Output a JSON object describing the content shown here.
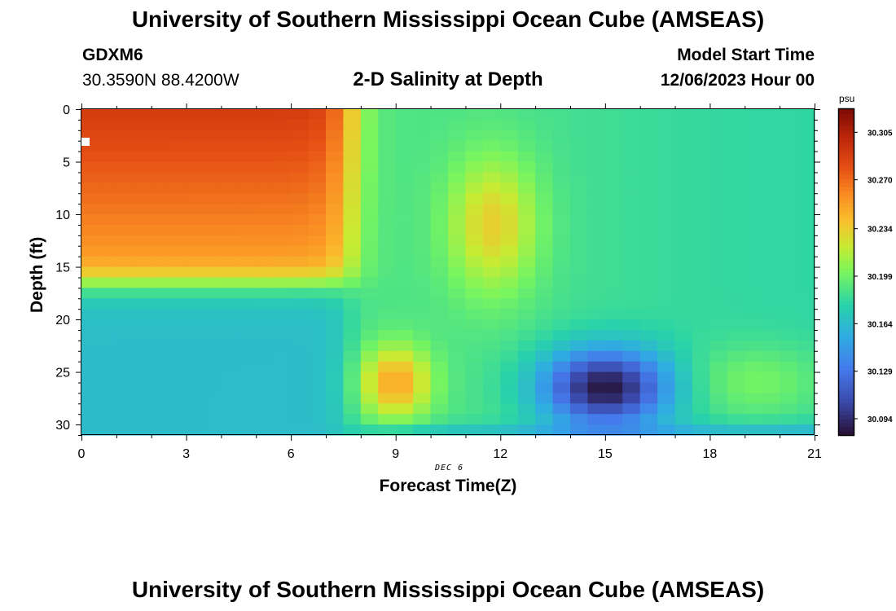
{
  "header": {
    "title_top": "University of Southern Mississippi Ocean Cube (AMSEAS)",
    "title_bottom": "University of Southern Mississippi Ocean Cube (AMSEAS)",
    "station": "GDXM6",
    "coords": "30.3590N  88.4200W",
    "plot_title": "2-D Salinity at Depth",
    "model_start_label": "Model Start Time",
    "model_start_value": "12/06/2023 Hour 00"
  },
  "chart_data": {
    "type": "heatmap",
    "title": "2-D Salinity at Depth",
    "xlabel": "Forecast Time(Z)",
    "ylabel": "Depth (ft)",
    "date_label": "DEC 6",
    "xlim": [
      0,
      21
    ],
    "ylim": [
      31,
      0
    ],
    "xticks": [
      0,
      3,
      6,
      9,
      12,
      15,
      18,
      21
    ],
    "yticks": [
      0,
      5,
      10,
      15,
      20,
      25,
      30
    ],
    "colorbar": {
      "unit": "psu",
      "min": 30.082,
      "max": 30.322,
      "tick_values": [
        30.094,
        30.129,
        30.164,
        30.199,
        30.234,
        30.27,
        30.305
      ],
      "tick_labels": [
        "30.094",
        "30.129",
        "30.164",
        "30.199",
        "30.234",
        "30.270",
        "30.305"
      ]
    },
    "field": {
      "description": "salinity (psu) as function of forecast hour and depth",
      "t_hours": [
        0,
        21
      ],
      "depth_ft": [
        0,
        31
      ],
      "regions": [
        {
          "name": "surface high-salinity layer",
          "t": [
            0,
            8
          ],
          "depth": [
            0,
            15
          ],
          "value": 30.3
        },
        {
          "name": "mid-layer",
          "t": [
            8,
            21
          ],
          "depth": [
            0,
            20
          ],
          "value": 30.19
        },
        {
          "name": "surface high t11-13",
          "t": [
            10.5,
            13
          ],
          "depth": [
            3,
            16
          ],
          "value": 30.23
        },
        {
          "name": "deep low-salinity layer",
          "t": [
            0,
            7.5
          ],
          "depth": [
            17,
            31
          ],
          "value": 30.145
        },
        {
          "name": "deep high t8.5-10",
          "t": [
            8,
            10
          ],
          "depth": [
            22,
            30
          ],
          "value": 30.25
        },
        {
          "name": "deep minimum t13-17",
          "t": [
            13,
            17
          ],
          "depth": [
            22,
            30
          ],
          "value": 30.095
        },
        {
          "name": "deep moderate t18-21",
          "t": [
            18,
            21
          ],
          "depth": [
            23,
            29
          ],
          "value": 30.205
        }
      ]
    }
  }
}
